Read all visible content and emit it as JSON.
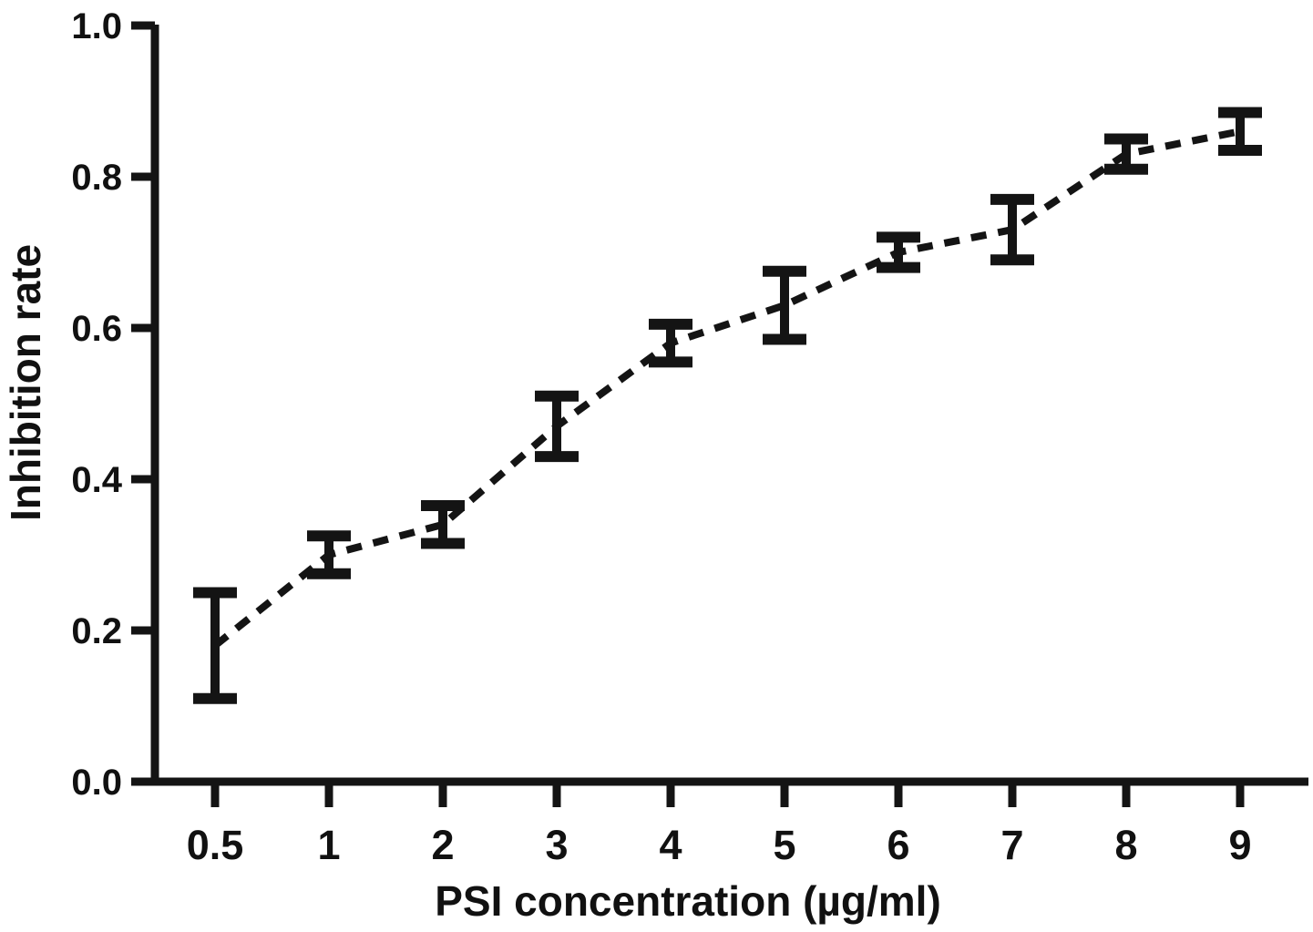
{
  "figure": {
    "background": "#ffffff",
    "ink_color": "#141414"
  },
  "chart_data": {
    "type": "line",
    "title": "",
    "xlabel": "PSI concentration (µg/ml)",
    "ylabel": "Inhibition rate",
    "categories": [
      "0.5",
      "1",
      "2",
      "3",
      "4",
      "5",
      "6",
      "7",
      "8",
      "9"
    ],
    "x": [
      0.5,
      1,
      2,
      3,
      4,
      5,
      6,
      7,
      8,
      9
    ],
    "yticks": [
      "0.0",
      "0.2",
      "0.4",
      "0.6",
      "0.8",
      "1.0"
    ],
    "ylim": [
      0.0,
      1.0
    ],
    "grid": false,
    "legend": false,
    "line_style": "dashed",
    "marker": "error-bar",
    "series": [
      {
        "name": "Inhibition rate",
        "values": [
          0.18,
          0.3,
          0.34,
          0.47,
          0.58,
          0.63,
          0.7,
          0.73,
          0.83,
          0.86
        ],
        "errors": [
          0.07,
          0.025,
          0.025,
          0.04,
          0.025,
          0.045,
          0.02,
          0.04,
          0.02,
          0.025
        ]
      }
    ]
  }
}
